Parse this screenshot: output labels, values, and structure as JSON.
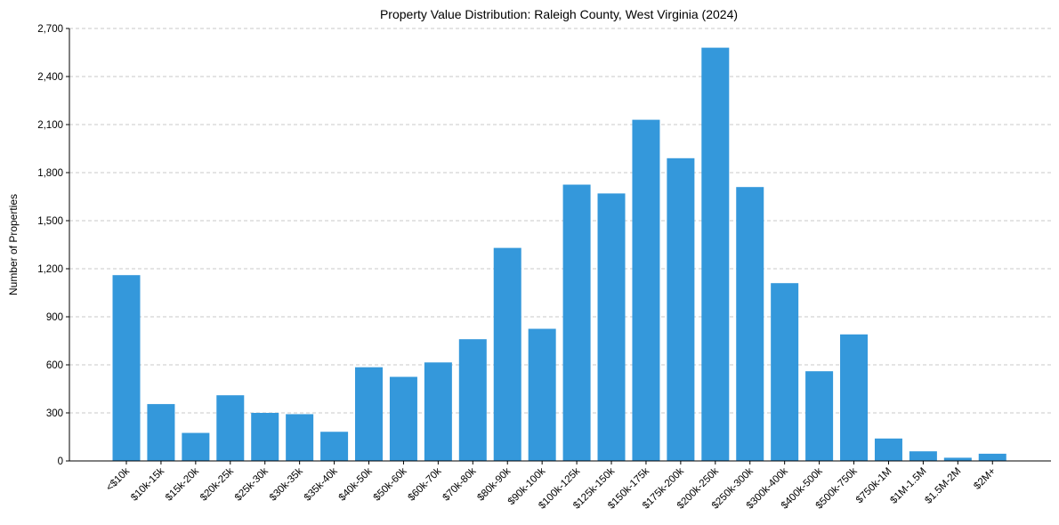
{
  "chart_data": {
    "type": "bar",
    "title": "Property Value Distribution: Raleigh County, West Virginia (2024)",
    "xlabel": "",
    "ylabel": "Number of Properties",
    "ylim": [
      0,
      2700
    ],
    "yticks": [
      0,
      300,
      600,
      900,
      1200,
      1500,
      1800,
      2100,
      2400,
      2700
    ],
    "ytick_labels": [
      "0",
      "300",
      "600",
      "900",
      "1,200",
      "1,500",
      "1,800",
      "2,100",
      "2,400",
      "2,700"
    ],
    "grid": "horizontal dashed",
    "bar_color": "#3498db",
    "categories": [
      "<$10k",
      "$10k-15k",
      "$15k-20k",
      "$20k-25k",
      "$25k-30k",
      "$30k-35k",
      "$35k-40k",
      "$40k-50k",
      "$50k-60k",
      "$60k-70k",
      "$70k-80k",
      "$80k-90k",
      "$90k-100k",
      "$100k-125k",
      "$125k-150k",
      "$150k-175k",
      "$175k-200k",
      "$200k-250k",
      "$250k-300k",
      "$300k-400k",
      "$400k-500k",
      "$500k-750k",
      "$750k-1M",
      "$1M-1.5M",
      "$1.5M-2M",
      "$2M+"
    ],
    "values": [
      1160,
      355,
      175,
      410,
      300,
      292,
      182,
      585,
      525,
      615,
      760,
      1330,
      825,
      1725,
      1670,
      2130,
      1890,
      2580,
      1710,
      1110,
      560,
      790,
      140,
      60,
      20,
      45
    ]
  }
}
